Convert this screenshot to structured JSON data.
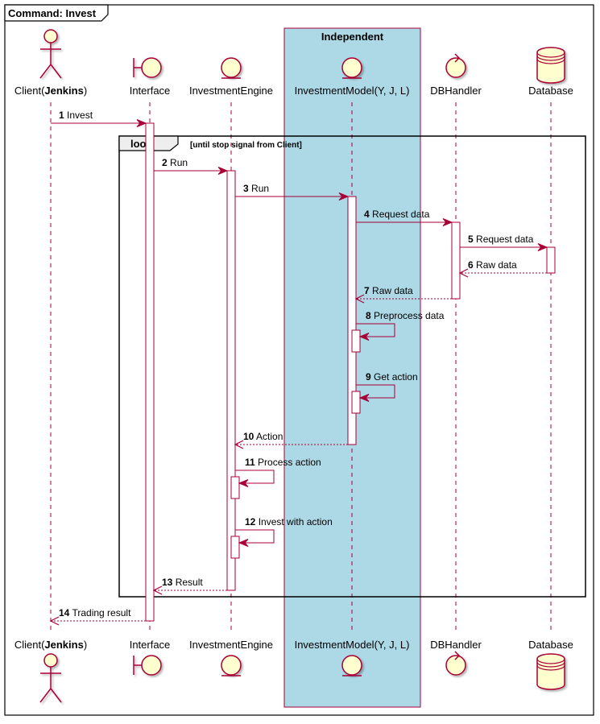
{
  "frame": {
    "keyword": "Command:",
    "name": "Invest"
  },
  "box": {
    "title": "Independent",
    "color": "#ADD8E6"
  },
  "participants": [
    {
      "id": "client",
      "kind": "actor",
      "label_prefix": "Client(",
      "label_bold": "Jenkins",
      "label_suffix": ")"
    },
    {
      "id": "interface",
      "kind": "boundary",
      "label": "Interface"
    },
    {
      "id": "engine",
      "kind": "entity",
      "label": "InvestmentEngine"
    },
    {
      "id": "model",
      "kind": "entity",
      "label": "InvestmentModel(Y, J, L)"
    },
    {
      "id": "dbhandler",
      "kind": "control",
      "label": "DBHandler"
    },
    {
      "id": "database",
      "kind": "database",
      "label": "Database"
    }
  ],
  "loop": {
    "keyword": "loop",
    "condition": "[until stop signal from Client]"
  },
  "messages": [
    {
      "num": "1",
      "text": "Invest",
      "from": "client",
      "to": "interface",
      "kind": "sync"
    },
    {
      "num": "2",
      "text": "Run",
      "from": "interface",
      "to": "engine",
      "kind": "sync"
    },
    {
      "num": "3",
      "text": "Run",
      "from": "engine",
      "to": "model",
      "kind": "sync"
    },
    {
      "num": "4",
      "text": "Request data",
      "from": "model",
      "to": "dbhandler",
      "kind": "sync"
    },
    {
      "num": "5",
      "text": "Request data",
      "from": "dbhandler",
      "to": "database",
      "kind": "sync"
    },
    {
      "num": "6",
      "text": "Raw data",
      "from": "database",
      "to": "dbhandler",
      "kind": "return"
    },
    {
      "num": "7",
      "text": "Raw data",
      "from": "dbhandler",
      "to": "model",
      "kind": "return"
    },
    {
      "num": "8",
      "text": "Preprocess data",
      "from": "model",
      "to": "model",
      "kind": "self"
    },
    {
      "num": "9",
      "text": "Get action",
      "from": "model",
      "to": "model",
      "kind": "self"
    },
    {
      "num": "10",
      "text": "Action",
      "from": "model",
      "to": "engine",
      "kind": "return"
    },
    {
      "num": "11",
      "text": "Process action",
      "from": "engine",
      "to": "engine",
      "kind": "self"
    },
    {
      "num": "12",
      "text": "Invest with action",
      "from": "engine",
      "to": "engine",
      "kind": "self"
    },
    {
      "num": "13",
      "text": "Result",
      "from": "engine",
      "to": "interface",
      "kind": "return"
    },
    {
      "num": "14",
      "text": "Trading result",
      "from": "interface",
      "to": "client",
      "kind": "return"
    }
  ],
  "colors": {
    "line": "#A80036",
    "fill": "#FEFECE",
    "frame": "#000000"
  }
}
